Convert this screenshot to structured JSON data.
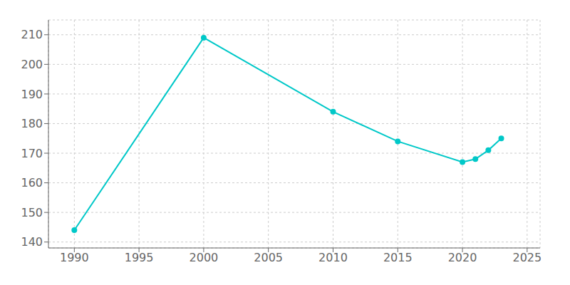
{
  "chart_data": {
    "type": "line",
    "x": [
      1990,
      2000,
      2010,
      2015,
      2020,
      2021,
      2022,
      2023
    ],
    "values": [
      144,
      209,
      184,
      174,
      167,
      168,
      171,
      175
    ],
    "color": "#00C8C8",
    "marker": "o",
    "xlim": [
      1988,
      2026
    ],
    "ylim": [
      138,
      215
    ],
    "xticks": [
      1990,
      1995,
      2000,
      2005,
      2010,
      2015,
      2020,
      2025
    ],
    "yticks": [
      140,
      150,
      160,
      170,
      180,
      190,
      200,
      210
    ],
    "grid": true
  }
}
